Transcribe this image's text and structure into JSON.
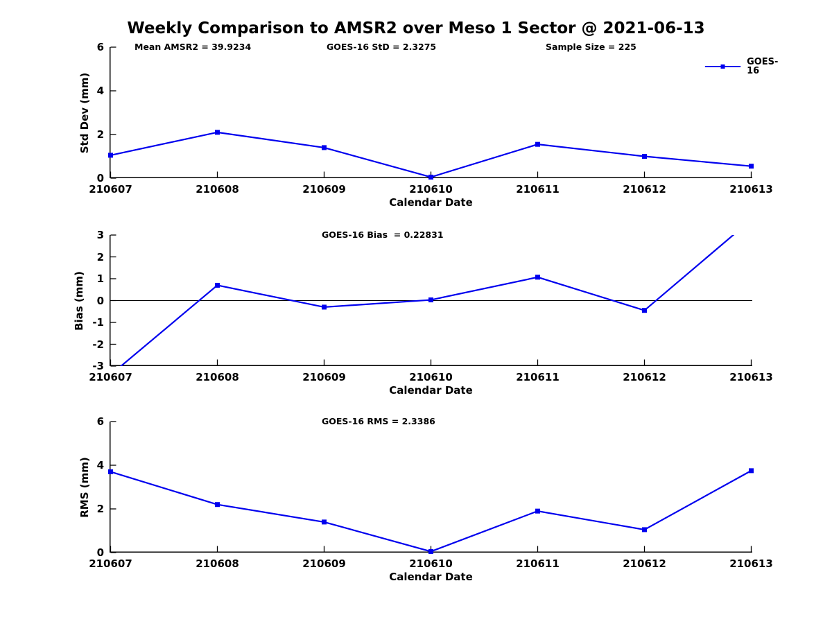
{
  "title": "Weekly Comparison to AMSR2 over Meso 1 Sector @ 2021-06-13",
  "colors": {
    "line": "#0000EE",
    "axis": "#000000",
    "text": "#000000",
    "background": "#FFFFFF"
  },
  "legend": {
    "label": "GOES-16"
  },
  "chart_data": [
    {
      "type": "line",
      "name": "std-dev",
      "ylabel": "Std Dev (mm)",
      "xlabel": "Calendar Date",
      "annotations": [
        "Mean AMSR2 = 39.9234",
        "GOES-16 StD = 2.3275",
        "Sample Size = 225"
      ],
      "x": [
        "210607",
        "210608",
        "210609",
        "210610",
        "210611",
        "210612",
        "210613"
      ],
      "series": [
        {
          "name": "GOES-16",
          "values": [
            1.05,
            2.1,
            1.4,
            0.05,
            1.55,
            1.0,
            0.55
          ]
        }
      ],
      "ylim": [
        0,
        6
      ],
      "yticks": [
        0,
        2,
        4,
        6
      ],
      "grid": false,
      "legend_position": "top-right"
    },
    {
      "type": "line",
      "name": "bias",
      "ylabel": "Bias (mm)",
      "xlabel": "Calendar Date",
      "annotation": "GOES-16 Bias  = 0.22831",
      "x": [
        "210607",
        "210608",
        "210609",
        "210610",
        "210611",
        "210612",
        "210613"
      ],
      "series": [
        {
          "name": "GOES-16",
          "values": [
            -3.4,
            0.7,
            -0.3,
            0.03,
            1.07,
            -0.45,
            3.7
          ]
        }
      ],
      "ylim": [
        -3,
        3
      ],
      "yticks": [
        -3,
        -2,
        -1,
        0,
        1,
        2,
        3
      ],
      "zero_line": true,
      "grid": false,
      "note": "first and last points exceed the y-limits; line is clipped at the axes bounds"
    },
    {
      "type": "line",
      "name": "rms",
      "ylabel": "RMS (mm)",
      "xlabel": "Calendar Date",
      "annotation": "GOES-16 RMS = 2.3386",
      "x": [
        "210607",
        "210608",
        "210609",
        "210610",
        "210611",
        "210612",
        "210613"
      ],
      "series": [
        {
          "name": "GOES-16",
          "values": [
            3.7,
            2.2,
            1.4,
            0.05,
            1.9,
            1.05,
            3.75
          ]
        }
      ],
      "ylim": [
        0,
        6
      ],
      "yticks": [
        0,
        2,
        4,
        6
      ],
      "grid": false
    }
  ]
}
